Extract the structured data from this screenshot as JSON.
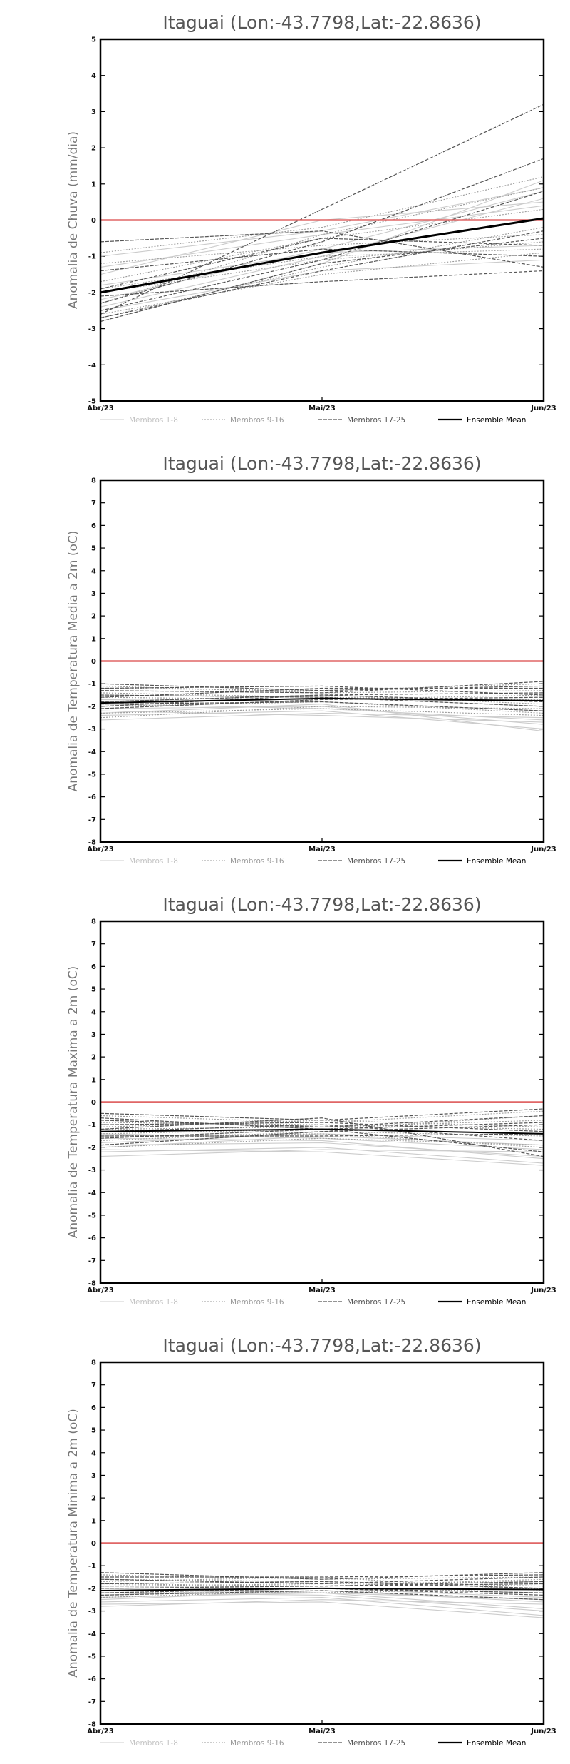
{
  "colors": {
    "members_1_8": "#cccccc",
    "members_9_16": "#9a9a9a",
    "members_17_25": "#555555",
    "ensemble_mean": "#000000",
    "zero_line": "#e06666"
  },
  "chart_data": [
    {
      "type": "line",
      "title": "Itaguai (Lon:-43.7798,Lat:-22.8636)",
      "ylabel": "Anomalia de Chuva (mm/dia)",
      "xlabel": "",
      "categories": [
        "Abr/23",
        "Mai/23",
        "Jun/23"
      ],
      "ylim": [
        -5,
        5
      ],
      "yticks": [
        -5,
        -4,
        -3,
        -2,
        -1,
        0,
        1,
        2,
        3,
        4,
        5
      ],
      "reference_line": 0,
      "legend": [
        "Membros 1-8",
        "Membros 9-16",
        "Membros 17-25",
        "Ensemble Mean"
      ],
      "legend_position": "bottom",
      "groups": [
        {
          "name": "Membros 1-8",
          "style": "solid",
          "series": [
            [
              -1.3,
              -0.4,
              0.4
            ],
            [
              -2.4,
              -1.0,
              0.6
            ],
            [
              -1.8,
              -0.9,
              -0.7
            ],
            [
              -2.8,
              -1.2,
              1.1
            ],
            [
              -1.0,
              -0.3,
              0.9
            ],
            [
              -2.5,
              -1.4,
              -1.1
            ],
            [
              -1.5,
              0.0,
              0.5
            ],
            [
              -2.2,
              -0.8,
              0.8
            ]
          ]
        },
        {
          "name": "Membros 9-16",
          "style": "dotted",
          "series": [
            [
              -0.9,
              -0.2,
              1.2
            ],
            [
              -2.6,
              -1.5,
              -0.9
            ],
            [
              -1.7,
              -0.5,
              0.3
            ],
            [
              -2.0,
              -1.1,
              -0.6
            ],
            [
              -2.7,
              -1.3,
              -0.2
            ],
            [
              -1.2,
              -0.7,
              -0.4
            ],
            [
              -2.3,
              -0.4,
              0.9
            ],
            [
              -1.9,
              -1.0,
              -0.8
            ]
          ]
        },
        {
          "name": "Membros 17-25",
          "style": "dashed",
          "series": [
            [
              -2.6,
              0.3,
              3.2
            ],
            [
              -2.3,
              -0.6,
              1.7
            ],
            [
              -2.7,
              -1.4,
              -0.3
            ],
            [
              -0.6,
              -0.3,
              -1.3
            ],
            [
              -2.8,
              -1.2,
              -0.5
            ],
            [
              -2.1,
              -1.7,
              -1.4
            ],
            [
              -1.9,
              -0.5,
              -0.7
            ],
            [
              -2.5,
              -1.1,
              0.8
            ],
            [
              -1.4,
              -0.8,
              -1.0
            ]
          ]
        }
      ],
      "ensemble_mean": [
        -2.0,
        -0.9,
        0.05
      ]
    },
    {
      "type": "line",
      "title": "Itaguai (Lon:-43.7798,Lat:-22.8636)",
      "ylabel": "Anomalia de Temperatura Media a 2m (oC)",
      "xlabel": "",
      "categories": [
        "Abr/23",
        "Mai/23",
        "Jun/23"
      ],
      "ylim": [
        -8,
        8
      ],
      "yticks": [
        -8,
        -7,
        -6,
        -5,
        -4,
        -3,
        -2,
        -1,
        0,
        1,
        2,
        3,
        4,
        5,
        6,
        7,
        8
      ],
      "reference_line": 0,
      "legend": [
        "Membros 1-8",
        "Membros 9-16",
        "Membros 17-25",
        "Ensemble Mean"
      ],
      "legend_position": "bottom",
      "groups": [
        {
          "name": "Membros 1-8",
          "style": "solid",
          "series": [
            [
              -2.4,
              -2.2,
              -3.0
            ],
            [
              -2.1,
              -2.0,
              -2.8
            ],
            [
              -1.9,
              -2.1,
              -2.6
            ],
            [
              -2.6,
              -2.3,
              -2.5
            ],
            [
              -1.7,
              -1.8,
              -2.2
            ],
            [
              -2.3,
              -1.9,
              -3.1
            ],
            [
              -1.5,
              -1.6,
              -2.0
            ],
            [
              -2.2,
              -2.4,
              -2.7
            ]
          ]
        },
        {
          "name": "Membros 9-16",
          "style": "dotted",
          "series": [
            [
              -1.2,
              -1.3,
              -1.0
            ],
            [
              -2.0,
              -1.8,
              -2.3
            ],
            [
              -1.4,
              -1.6,
              -1.7
            ],
            [
              -2.5,
              -2.0,
              -2.1
            ],
            [
              -1.1,
              -1.4,
              -1.3
            ],
            [
              -1.8,
              -1.5,
              -1.9
            ],
            [
              -2.3,
              -2.1,
              -2.4
            ],
            [
              -1.6,
              -1.7,
              -1.5
            ]
          ]
        },
        {
          "name": "Membros 17-25",
          "style": "dashed",
          "series": [
            [
              -1.0,
              -1.3,
              -1.1
            ],
            [
              -1.3,
              -1.4,
              -0.9
            ],
            [
              -1.6,
              -1.2,
              -1.2
            ],
            [
              -1.8,
              -1.5,
              -1.4
            ],
            [
              -2.1,
              -1.7,
              -1.6
            ],
            [
              -1.5,
              -1.6,
              -2.0
            ],
            [
              -2.0,
              -1.5,
              -1.8
            ],
            [
              -1.2,
              -1.1,
              -1.5
            ],
            [
              -1.9,
              -1.8,
              -2.2
            ]
          ]
        }
      ],
      "ensemble_mean": [
        -1.85,
        -1.65,
        -1.75
      ]
    },
    {
      "type": "line",
      "title": "Itaguai (Lon:-43.7798,Lat:-22.8636)",
      "ylabel": "Anomalia de Temperatura Maxima a 2m (oC)",
      "xlabel": "",
      "categories": [
        "Abr/23",
        "Mai/23",
        "Jun/23"
      ],
      "ylim": [
        -8,
        8
      ],
      "yticks": [
        -8,
        -7,
        -6,
        -5,
        -4,
        -3,
        -2,
        -1,
        0,
        1,
        2,
        3,
        4,
        5,
        6,
        7,
        8
      ],
      "reference_line": 0,
      "legend": [
        "Membros 1-8",
        "Membros 9-16",
        "Membros 17-25",
        "Ensemble Mean"
      ],
      "legend_position": "bottom",
      "groups": [
        {
          "name": "Membros 1-8",
          "style": "solid",
          "series": [
            [
              -2.2,
              -2.0,
              -2.7
            ],
            [
              -1.9,
              -1.8,
              -2.4
            ],
            [
              -2.4,
              -2.1,
              -2.2
            ],
            [
              -1.6,
              -1.7,
              -2.5
            ],
            [
              -2.0,
              -1.5,
              -1.9
            ],
            [
              -1.4,
              -1.6,
              -2.1
            ],
            [
              -2.1,
              -2.2,
              -2.8
            ],
            [
              -1.8,
              -1.4,
              -1.7
            ]
          ]
        },
        {
          "name": "Membros 9-16",
          "style": "dotted",
          "series": [
            [
              -0.6,
              -0.9,
              -0.4
            ],
            [
              -1.2,
              -1.1,
              -0.8
            ],
            [
              -1.7,
              -1.3,
              -1.5
            ],
            [
              -0.9,
              -1.0,
              -1.2
            ],
            [
              -2.0,
              -1.6,
              -1.9
            ],
            [
              -1.4,
              -1.2,
              -0.6
            ],
            [
              -1.1,
              -0.8,
              -1.1
            ],
            [
              -1.5,
              -1.4,
              -2.0
            ]
          ]
        },
        {
          "name": "Membros 17-25",
          "style": "dashed",
          "series": [
            [
              -0.5,
              -0.8,
              -0.3
            ],
            [
              -0.8,
              -1.1,
              -0.6
            ],
            [
              -1.0,
              -0.9,
              -1.3
            ],
            [
              -1.3,
              -1.0,
              -1.7
            ],
            [
              -1.6,
              -1.2,
              -2.2
            ],
            [
              -1.9,
              -1.3,
              -1.0
            ],
            [
              -1.2,
              -0.7,
              -2.4
            ],
            [
              -0.7,
              -1.2,
              -0.9
            ],
            [
              -1.5,
              -1.5,
              -1.4
            ]
          ]
        }
      ],
      "ensemble_mean": [
        -1.3,
        -1.2,
        -1.4
      ]
    },
    {
      "type": "line",
      "title": "Itaguai (Lon:-43.7798,Lat:-22.8636)",
      "ylabel": "Anomalia de Temperatura Minima a 2m (oC)",
      "xlabel": "",
      "categories": [
        "Abr/23",
        "Mai/23",
        "Jun/23"
      ],
      "ylim": [
        -8,
        8
      ],
      "yticks": [
        -8,
        -7,
        -6,
        -5,
        -4,
        -3,
        -2,
        -1,
        0,
        1,
        2,
        3,
        4,
        5,
        6,
        7,
        8
      ],
      "reference_line": 0,
      "legend": [
        "Membros 1-8",
        "Membros 9-16",
        "Membros 17-25",
        "Ensemble Mean"
      ],
      "legend_position": "bottom",
      "groups": [
        {
          "name": "Membros 1-8",
          "style": "solid",
          "series": [
            [
              -2.6,
              -2.4,
              -3.2
            ],
            [
              -2.4,
              -2.2,
              -2.9
            ],
            [
              -2.8,
              -2.5,
              -2.7
            ],
            [
              -2.2,
              -2.3,
              -3.0
            ],
            [
              -2.5,
              -2.1,
              -2.6
            ],
            [
              -2.0,
              -2.2,
              -2.5
            ],
            [
              -2.7,
              -2.6,
              -3.3
            ],
            [
              -2.3,
              -2.0,
              -2.4
            ]
          ]
        },
        {
          "name": "Membros 9-16",
          "style": "dotted",
          "series": [
            [
              -1.4,
              -1.6,
              -1.5
            ],
            [
              -1.8,
              -1.9,
              -1.6
            ],
            [
              -2.1,
              -2.0,
              -2.2
            ],
            [
              -1.6,
              -1.7,
              -1.9
            ],
            [
              -2.4,
              -2.1,
              -2.5
            ],
            [
              -1.9,
              -1.8,
              -1.7
            ],
            [
              -2.2,
              -2.2,
              -2.0
            ],
            [
              -1.7,
              -1.5,
              -2.1
            ]
          ]
        },
        {
          "name": "Membros 17-25",
          "style": "dashed",
          "series": [
            [
              -1.3,
              -1.6,
              -1.3
            ],
            [
              -1.6,
              -1.8,
              -1.5
            ],
            [
              -1.8,
              -1.7,
              -2.0
            ],
            [
              -2.0,
              -1.9,
              -1.8
            ],
            [
              -2.2,
              -2.0,
              -2.3
            ],
            [
              -1.5,
              -1.5,
              -1.4
            ],
            [
              -2.3,
              -2.1,
              -2.5
            ],
            [
              -1.9,
              -1.9,
              -1.7
            ],
            [
              -2.1,
              -2.0,
              -2.2
            ]
          ]
        }
      ],
      "ensemble_mean": [
        -2.1,
        -2.0,
        -2.05
      ]
    }
  ]
}
